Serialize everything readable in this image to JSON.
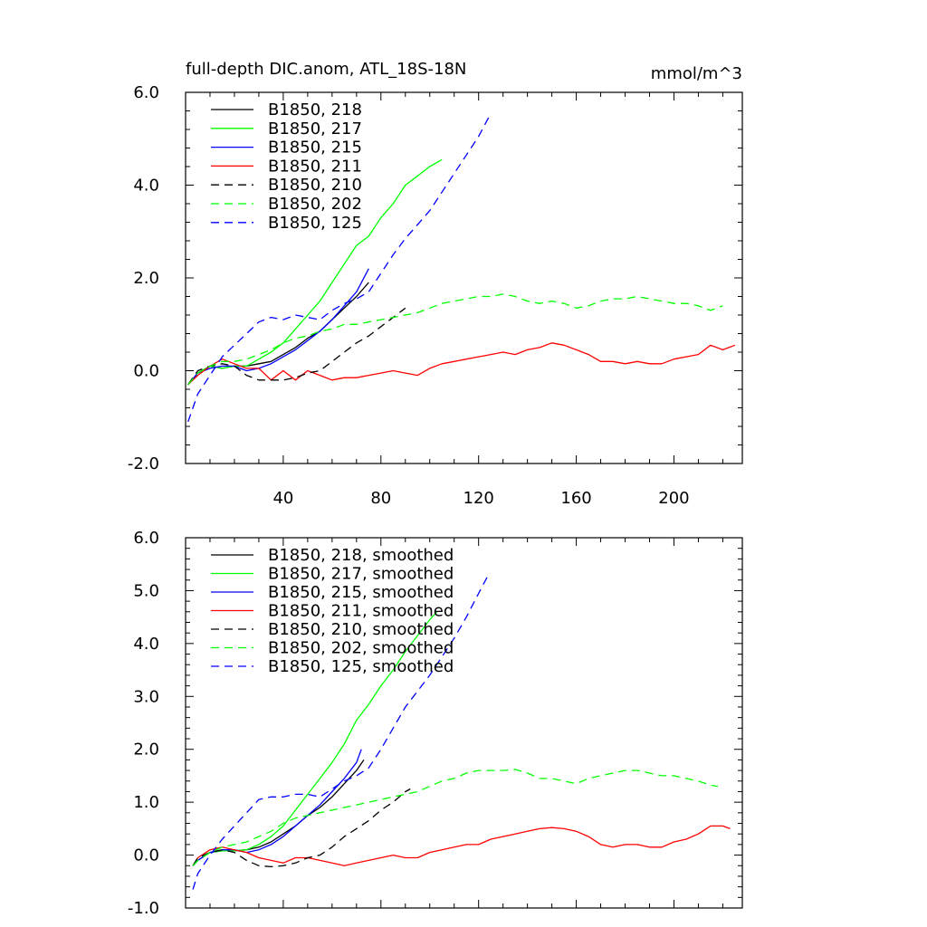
{
  "chart_data": [
    {
      "type": "line",
      "title": "full-depth DIC.anom, ATL_18S-18N",
      "units_label": "mmol/m^3",
      "xlabel": "",
      "ylabel": "",
      "xlim": [
        0,
        228
      ],
      "ylim": [
        -2.0,
        6.0
      ],
      "xticks": [
        40,
        80,
        120,
        160,
        200
      ],
      "xtick_labels": [
        "40",
        "80",
        "120",
        "160",
        "200"
      ],
      "yticks": [
        -2.0,
        0.0,
        2.0,
        4.0,
        6.0
      ],
      "ytick_labels": [
        "-2.0",
        "0.0",
        "2.0",
        "4.0",
        "6.0"
      ],
      "legend_position": "top-left",
      "grid": false,
      "series": [
        {
          "name": "B1850, 218",
          "color": "#000000",
          "dash": "solid",
          "x": [
            1,
            5,
            10,
            15,
            20,
            25,
            30,
            35,
            40,
            45,
            50,
            55,
            60,
            65,
            70,
            75
          ],
          "y": [
            -0.3,
            -0.05,
            0.1,
            0.05,
            0.1,
            0.1,
            0.15,
            0.2,
            0.35,
            0.5,
            0.7,
            0.85,
            1.1,
            1.35,
            1.6,
            1.9
          ]
        },
        {
          "name": "B1850, 217",
          "color": "#00ff00",
          "dash": "solid",
          "x": [
            1,
            5,
            10,
            15,
            20,
            25,
            30,
            35,
            40,
            45,
            50,
            55,
            60,
            65,
            70,
            75,
            80,
            85,
            90,
            95,
            100,
            105
          ],
          "y": [
            -0.3,
            -0.05,
            0.1,
            0.05,
            0.1,
            0.1,
            0.25,
            0.4,
            0.6,
            0.9,
            1.2,
            1.5,
            1.9,
            2.3,
            2.7,
            2.9,
            3.3,
            3.6,
            4.0,
            4.2,
            4.4,
            4.55
          ]
        },
        {
          "name": "B1850, 215",
          "color": "#0000ff",
          "dash": "solid",
          "x": [
            1,
            5,
            10,
            15,
            20,
            25,
            30,
            35,
            40,
            45,
            50,
            55,
            60,
            65,
            70,
            75
          ],
          "y": [
            -0.3,
            -0.05,
            0.05,
            0.1,
            0.1,
            0.0,
            0.05,
            0.15,
            0.3,
            0.45,
            0.65,
            0.85,
            1.1,
            1.4,
            1.7,
            2.2
          ]
        },
        {
          "name": "B1850, 211",
          "color": "#ff0000",
          "dash": "solid",
          "x": [
            1,
            5,
            10,
            15,
            20,
            25,
            30,
            35,
            40,
            45,
            50,
            55,
            60,
            65,
            70,
            75,
            80,
            85,
            90,
            95,
            100,
            105,
            110,
            115,
            120,
            125,
            130,
            135,
            140,
            145,
            150,
            155,
            160,
            165,
            170,
            175,
            180,
            185,
            190,
            195,
            200,
            205,
            210,
            215,
            220,
            225
          ],
          "y": [
            -0.3,
            -0.1,
            0.1,
            0.25,
            0.15,
            0.05,
            0.05,
            -0.2,
            0.0,
            -0.2,
            0.0,
            -0.1,
            -0.2,
            -0.15,
            -0.15,
            -0.1,
            -0.05,
            0.0,
            -0.05,
            -0.1,
            0.05,
            0.15,
            0.2,
            0.25,
            0.3,
            0.35,
            0.4,
            0.35,
            0.45,
            0.5,
            0.6,
            0.55,
            0.45,
            0.35,
            0.2,
            0.2,
            0.15,
            0.2,
            0.15,
            0.15,
            0.25,
            0.3,
            0.35,
            0.55,
            0.45,
            0.55
          ]
        },
        {
          "name": "B1850, 210",
          "color": "#000000",
          "dash": "dash",
          "x": [
            1,
            5,
            10,
            15,
            20,
            25,
            30,
            35,
            40,
            45,
            50,
            55,
            60,
            65,
            70,
            75,
            80,
            85,
            90
          ],
          "y": [
            -0.3,
            0.0,
            0.1,
            0.15,
            0.1,
            -0.1,
            -0.2,
            -0.2,
            -0.2,
            -0.15,
            -0.05,
            0.0,
            0.2,
            0.4,
            0.6,
            0.75,
            0.95,
            1.15,
            1.35
          ]
        },
        {
          "name": "B1850, 202",
          "color": "#00ff00",
          "dash": "dash",
          "x": [
            1,
            5,
            10,
            15,
            20,
            25,
            30,
            35,
            40,
            45,
            50,
            55,
            60,
            65,
            70,
            75,
            80,
            85,
            90,
            95,
            100,
            105,
            110,
            115,
            120,
            125,
            130,
            135,
            140,
            145,
            150,
            155,
            160,
            165,
            170,
            175,
            180,
            185,
            190,
            195,
            200,
            205,
            210,
            215,
            220
          ],
          "y": [
            -0.3,
            -0.05,
            0.1,
            0.2,
            0.2,
            0.25,
            0.35,
            0.45,
            0.6,
            0.7,
            0.75,
            0.85,
            0.9,
            1.0,
            1.0,
            1.05,
            1.1,
            1.15,
            1.2,
            1.25,
            1.35,
            1.45,
            1.5,
            1.55,
            1.6,
            1.6,
            1.65,
            1.6,
            1.5,
            1.45,
            1.5,
            1.45,
            1.35,
            1.4,
            1.5,
            1.55,
            1.55,
            1.6,
            1.55,
            1.5,
            1.45,
            1.45,
            1.4,
            1.3,
            1.4
          ]
        },
        {
          "name": "B1850, 125",
          "color": "#0000ff",
          "dash": "dash",
          "x": [
            1,
            5,
            10,
            15,
            20,
            25,
            30,
            35,
            40,
            45,
            50,
            55,
            60,
            65,
            70,
            75,
            80,
            85,
            90,
            95,
            100,
            105,
            110,
            115,
            120,
            125
          ],
          "y": [
            -1.1,
            -0.5,
            -0.1,
            0.3,
            0.55,
            0.8,
            1.05,
            1.15,
            1.1,
            1.2,
            1.15,
            1.1,
            1.3,
            1.45,
            1.55,
            1.7,
            2.1,
            2.5,
            2.85,
            3.15,
            3.45,
            3.85,
            4.25,
            4.65,
            5.05,
            5.55
          ]
        }
      ]
    },
    {
      "type": "line",
      "xlim": [
        0,
        228
      ],
      "ylim": [
        -1.0,
        6.0
      ],
      "yticks": [
        -1.0,
        0.0,
        1.0,
        2.0,
        3.0,
        4.0,
        5.0,
        6.0
      ],
      "ytick_labels": [
        "-1.0",
        "0.0",
        "1.0",
        "2.0",
        "3.0",
        "4.0",
        "5.0",
        "6.0"
      ],
      "xticks": [
        40,
        80,
        120,
        160,
        200
      ],
      "legend_position": "top-left",
      "grid": false,
      "series": [
        {
          "name": "B1850, 218, smoothed",
          "color": "#000000",
          "dash": "solid",
          "x": [
            3,
            5,
            10,
            15,
            20,
            25,
            30,
            35,
            40,
            45,
            50,
            55,
            60,
            65,
            70,
            73
          ],
          "y": [
            -0.2,
            -0.1,
            0.05,
            0.08,
            0.08,
            0.1,
            0.15,
            0.25,
            0.4,
            0.55,
            0.75,
            0.9,
            1.1,
            1.35,
            1.6,
            1.8
          ]
        },
        {
          "name": "B1850, 217, smoothed",
          "color": "#00ff00",
          "dash": "solid",
          "x": [
            3,
            5,
            10,
            15,
            20,
            25,
            30,
            35,
            40,
            45,
            50,
            55,
            60,
            65,
            70,
            75,
            80,
            85,
            90,
            95,
            100,
            103
          ],
          "y": [
            -0.2,
            -0.1,
            0.05,
            0.08,
            0.08,
            0.1,
            0.2,
            0.35,
            0.55,
            0.85,
            1.15,
            1.45,
            1.75,
            2.1,
            2.55,
            2.85,
            3.2,
            3.5,
            3.85,
            4.15,
            4.45,
            4.6
          ]
        },
        {
          "name": "B1850, 215, smoothed",
          "color": "#0000ff",
          "dash": "solid",
          "x": [
            3,
            5,
            10,
            15,
            20,
            25,
            30,
            35,
            40,
            45,
            50,
            55,
            60,
            65,
            70,
            72
          ],
          "y": [
            -0.2,
            -0.1,
            0.05,
            0.1,
            0.1,
            0.05,
            0.1,
            0.2,
            0.35,
            0.55,
            0.75,
            0.95,
            1.2,
            1.45,
            1.75,
            2.0
          ]
        },
        {
          "name": "B1850, 211, smoothed",
          "color": "#ff0000",
          "dash": "solid",
          "x": [
            3,
            5,
            10,
            15,
            20,
            25,
            30,
            35,
            40,
            45,
            50,
            55,
            60,
            65,
            70,
            75,
            80,
            85,
            90,
            95,
            100,
            105,
            110,
            115,
            120,
            125,
            130,
            135,
            140,
            145,
            150,
            155,
            160,
            165,
            170,
            175,
            180,
            185,
            190,
            195,
            200,
            205,
            210,
            215,
            220,
            223
          ],
          "y": [
            -0.2,
            -0.05,
            0.1,
            0.15,
            0.1,
            0.05,
            -0.05,
            -0.1,
            -0.15,
            -0.05,
            -0.05,
            -0.1,
            -0.15,
            -0.2,
            -0.15,
            -0.1,
            -0.05,
            0.0,
            -0.05,
            -0.05,
            0.05,
            0.1,
            0.15,
            0.2,
            0.2,
            0.3,
            0.35,
            0.4,
            0.45,
            0.5,
            0.52,
            0.5,
            0.45,
            0.35,
            0.2,
            0.15,
            0.2,
            0.2,
            0.15,
            0.15,
            0.25,
            0.3,
            0.4,
            0.55,
            0.55,
            0.5
          ]
        },
        {
          "name": "B1850, 210, smoothed",
          "color": "#000000",
          "dash": "dash",
          "x": [
            3,
            5,
            10,
            15,
            20,
            25,
            30,
            35,
            40,
            45,
            50,
            55,
            60,
            65,
            70,
            75,
            80,
            85,
            90,
            92
          ],
          "y": [
            -0.2,
            -0.05,
            0.05,
            0.1,
            0.05,
            -0.1,
            -0.2,
            -0.22,
            -0.2,
            -0.15,
            -0.05,
            0.0,
            0.15,
            0.35,
            0.5,
            0.65,
            0.85,
            1.0,
            1.2,
            1.25
          ]
        },
        {
          "name": "B1850, 202, smoothed",
          "color": "#00ff00",
          "dash": "dash",
          "x": [
            3,
            5,
            10,
            15,
            20,
            25,
            30,
            35,
            40,
            45,
            50,
            55,
            60,
            65,
            70,
            75,
            80,
            85,
            90,
            95,
            100,
            105,
            110,
            115,
            120,
            125,
            130,
            135,
            140,
            145,
            150,
            155,
            160,
            165,
            170,
            175,
            180,
            185,
            190,
            195,
            200,
            205,
            210,
            215,
            218
          ],
          "y": [
            -0.2,
            -0.1,
            0.05,
            0.15,
            0.2,
            0.25,
            0.35,
            0.45,
            0.6,
            0.7,
            0.75,
            0.8,
            0.85,
            0.9,
            0.95,
            1.0,
            1.05,
            1.1,
            1.15,
            1.2,
            1.3,
            1.4,
            1.45,
            1.55,
            1.6,
            1.6,
            1.6,
            1.62,
            1.55,
            1.45,
            1.45,
            1.4,
            1.35,
            1.45,
            1.5,
            1.55,
            1.6,
            1.6,
            1.55,
            1.5,
            1.5,
            1.45,
            1.4,
            1.32,
            1.3
          ]
        },
        {
          "name": "B1850, 125, smoothed",
          "color": "#0000ff",
          "dash": "dash",
          "x": [
            3,
            5,
            10,
            15,
            20,
            25,
            30,
            35,
            40,
            45,
            50,
            55,
            60,
            65,
            70,
            75,
            80,
            85,
            90,
            95,
            100,
            105,
            110,
            115,
            120,
            124
          ],
          "y": [
            -0.65,
            -0.35,
            0.0,
            0.3,
            0.55,
            0.8,
            1.05,
            1.1,
            1.1,
            1.15,
            1.15,
            1.1,
            1.25,
            1.4,
            1.5,
            1.65,
            2.0,
            2.4,
            2.8,
            3.1,
            3.4,
            3.75,
            4.1,
            4.5,
            4.95,
            5.3
          ]
        }
      ]
    }
  ]
}
